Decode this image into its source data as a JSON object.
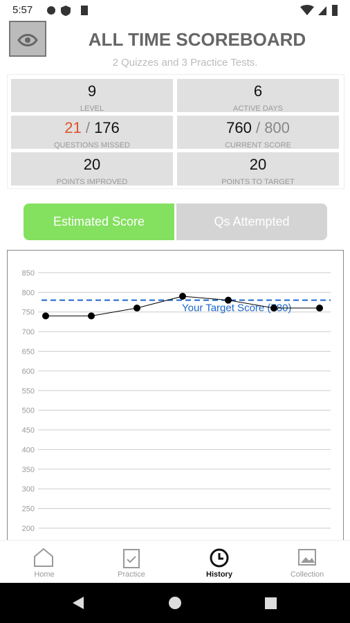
{
  "status_bar": {
    "time": "5:57"
  },
  "header": {
    "title": "ALL TIME SCOREBOARD",
    "subtitle": "2 Quizzes and 3 Practice Tests."
  },
  "stats": {
    "level": {
      "value": 9,
      "label": "LEVEL"
    },
    "active_days": {
      "value": 6,
      "label": "ACTIVE DAYS"
    },
    "questions_missed": {
      "missed": 21,
      "separator": "/",
      "total": 176,
      "label": "QUESTIONS MISSED"
    },
    "current_score": {
      "score": 760,
      "separator": "/",
      "max": 800,
      "label": "CURRENT SCORE"
    },
    "points_improved": {
      "value": 20,
      "label": "POINTS IMPROVED"
    },
    "points_to_target": {
      "value": 20,
      "label": "POINTS TO TARGET"
    }
  },
  "tabs": [
    "Estimated Score",
    "Qs Attempted"
  ],
  "chart_data": {
    "type": "line",
    "categories": [
      null,
      null,
      null,
      null,
      null,
      null,
      null
    ],
    "values": [
      740,
      740,
      760,
      790,
      780,
      760,
      760
    ],
    "color": "#000000",
    "ylim": [
      170,
      908
    ],
    "yticks": [
      200,
      250,
      300,
      350,
      400,
      450,
      500,
      550,
      600,
      650,
      700,
      750,
      800,
      850
    ],
    "grid": true,
    "target": {
      "value": 780,
      "label": "Your Target Score (780)",
      "color": "#1a66cc"
    }
  },
  "nav": [
    "Home",
    "Practice",
    "History",
    "Collection"
  ]
}
